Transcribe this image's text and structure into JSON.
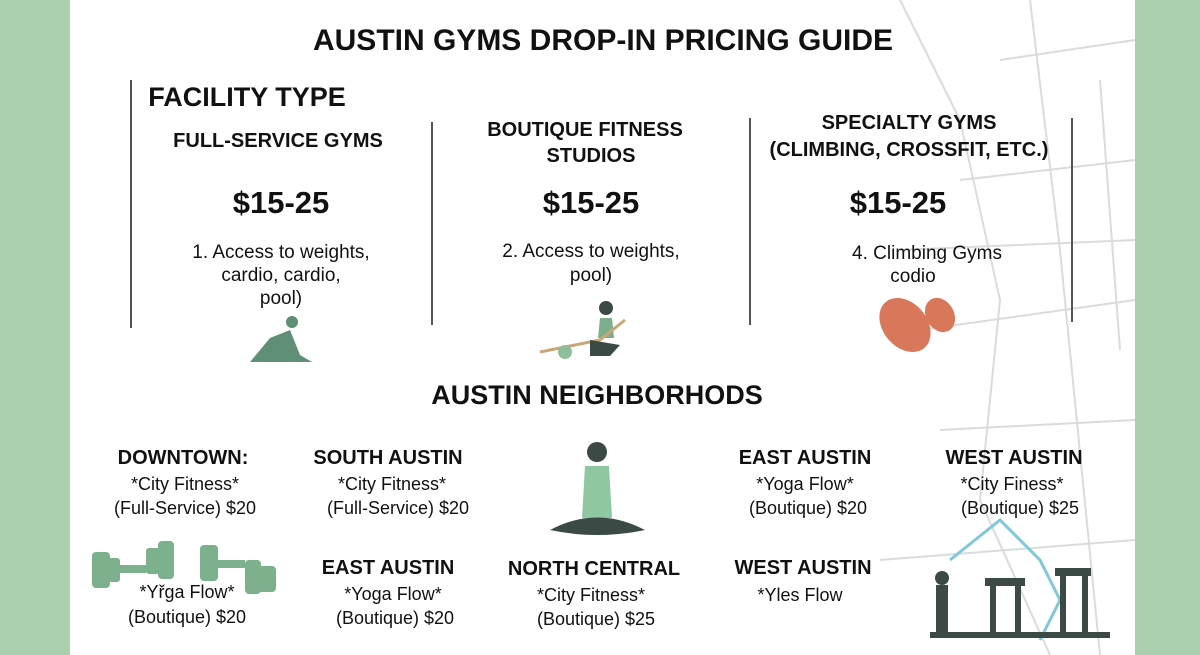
{
  "title": "AUSTIN GYMS DROP-IN PRICING GUIDE",
  "facility_type": {
    "heading": "FACILITY TYPE",
    "columns": [
      {
        "name": [
          "FULL-SERVICE GYMS"
        ],
        "price": "$15-25",
        "description": [
          "1. Access to weights,",
          "cardio, cardio,",
          "pool)"
        ]
      },
      {
        "name": [
          "BOUTIQUE FITNESS",
          "STUDIOS"
        ],
        "price": "$15-25",
        "description": [
          "2. Access to weights,",
          "pool)"
        ]
      },
      {
        "name": [
          "SPECIALTY GYMS",
          "(CLIMBING, CROSSFIT, ETC.)"
        ],
        "price": "$15-25",
        "description": [
          "4. Climbing Gyms",
          "codio"
        ]
      }
    ]
  },
  "neighborhoods": {
    "heading": "AUSTIN NEIGHBORHODS",
    "entries": [
      {
        "name": "DOWNTOWN:",
        "lines": [
          "*City Fitness*",
          "(Full-Service) $20"
        ]
      },
      {
        "name": "SOUTH AUSTIN",
        "lines": [
          "*City Fitness*",
          "(Full-Service) $20"
        ]
      },
      {
        "name": "EAST AUSTIN",
        "lines": [
          "*Yoga Flow*",
          "(Boutique) $20"
        ]
      },
      {
        "name": "WEST AUSTIN",
        "lines": [
          "*City Finess*",
          "(Boutique) $25"
        ]
      },
      {
        "lines": [
          "*Yřga Flow*",
          "(Boutique) $20"
        ]
      },
      {
        "name": "EAST AUSTIN",
        "lines": [
          "*Yoga Flow*",
          "(Boutique) $20"
        ]
      },
      {
        "name": "NORTH CENTRAL",
        "lines": [
          "*City Fitness*",
          "(Boutique) $25"
        ]
      },
      {
        "name": "WEST AUSTIN",
        "lines": [
          "*Yles Flow"
        ]
      }
    ]
  }
}
